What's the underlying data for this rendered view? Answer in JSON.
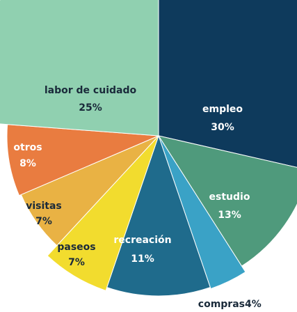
{
  "chart_data": {
    "type": "pie",
    "categories": [
      "empleo",
      "estudio",
      "compras",
      "recreación",
      "paseos",
      "visitas",
      "otros",
      "labor de cuidado"
    ],
    "values": [
      30,
      13,
      4,
      11,
      7,
      7,
      8,
      25
    ],
    "value_labels": [
      "30%",
      "13%",
      "4%",
      "11%",
      "7%",
      "7%",
      "8%",
      "25%"
    ],
    "colors": [
      "#0e3a5c",
      "#4f9a7c",
      "#3aa2c6",
      "#1f6b8c",
      "#f2dc2e",
      "#e9b244",
      "#e97c40",
      "#90d0b0"
    ]
  }
}
